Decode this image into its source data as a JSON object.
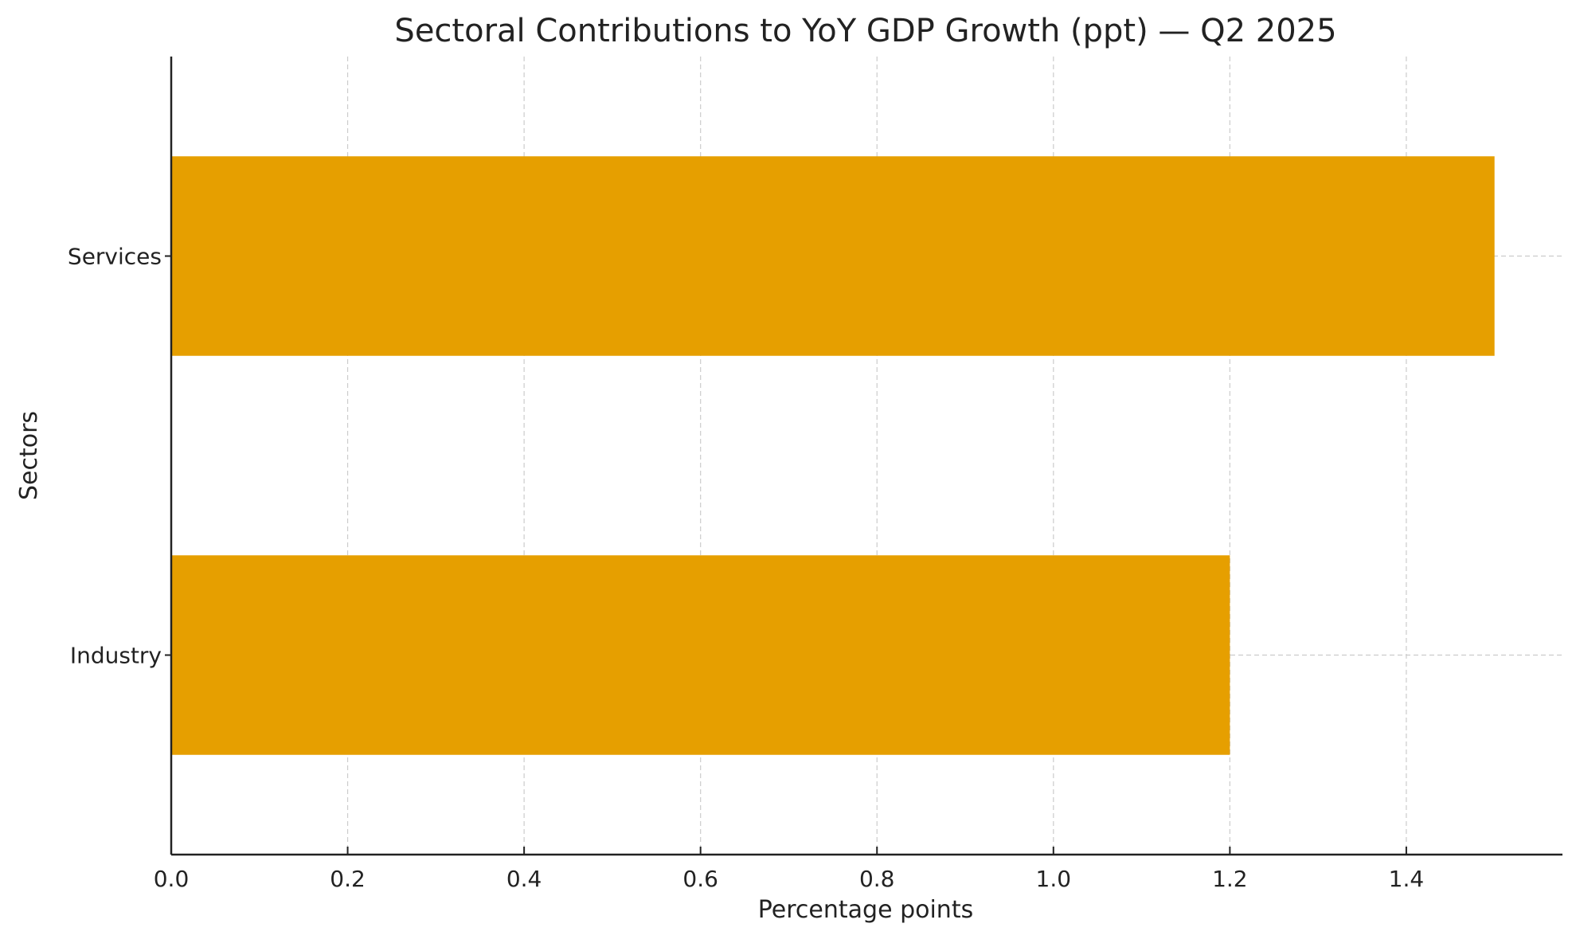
{
  "chart_data": {
    "type": "bar",
    "orientation": "horizontal",
    "title": "Sectoral Contributions to YoY GDP Growth (ppt) — Q2 2025",
    "xlabel": "Percentage points",
    "ylabel": "Sectors",
    "categories": [
      "Industry",
      "Services"
    ],
    "values": [
      1.2,
      1.5
    ],
    "xlim": [
      0,
      1.577
    ],
    "xticks": [
      "0.0",
      "0.2",
      "0.4",
      "0.6",
      "0.8",
      "1.0",
      "1.2",
      "1.4"
    ],
    "grid": true,
    "bar_color": "#E69F00"
  }
}
